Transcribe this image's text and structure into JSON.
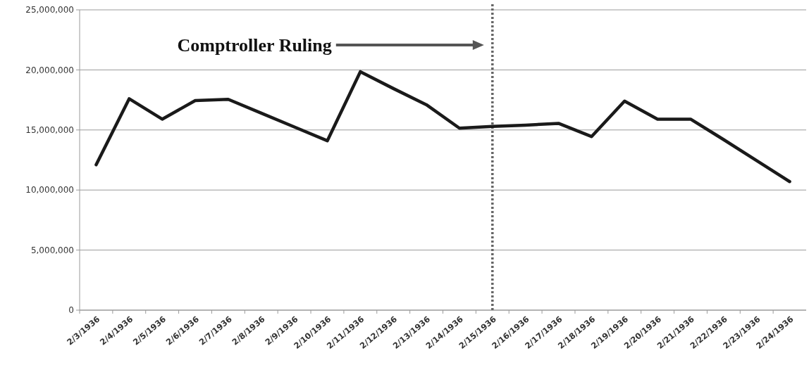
{
  "chart_data": {
    "type": "line",
    "categories": [
      "2/3/1936",
      "2/4/1936",
      "2/5/1936",
      "2/6/1936",
      "2/7/1936",
      "2/8/1936",
      "2/9/1936",
      "2/10/1936",
      "2/11/1936",
      "2/12/1936",
      "2/13/1936",
      "2/14/1936",
      "2/15/1936",
      "2/16/1936",
      "2/17/1936",
      "2/18/1936",
      "2/19/1936",
      "2/20/1936",
      "2/21/1936",
      "2/22/1936",
      "2/23/1936",
      "2/24/1936"
    ],
    "series": [
      {
        "color": "#1a1a1a",
        "values": [
          12100000,
          17600000,
          15900000,
          17450000,
          17550000,
          16400000,
          15250000,
          14100000,
          19850000,
          18450000,
          17100000,
          15150000,
          15300000,
          15400000,
          15550000,
          14450000,
          17400000,
          15900000,
          15900000,
          14200000,
          12450000,
          10700000
        ]
      }
    ],
    "ylim": [
      0,
      25000000
    ],
    "yticks": [
      {
        "value": 0,
        "label": "0"
      },
      {
        "value": 5000000,
        "label": "5,000,000"
      },
      {
        "value": 10000000,
        "label": "10,000,000"
      },
      {
        "value": 15000000,
        "label": "15,000,000"
      },
      {
        "value": 20000000,
        "label": "20,000,000"
      },
      {
        "value": 25000000,
        "label": "25,000,000"
      }
    ],
    "grid": "y",
    "marker": "none",
    "line_style": "solid",
    "ref_lines": [
      {
        "axis": "x",
        "value": "2/15/1936",
        "color": "#666666",
        "line_style": "dotted"
      }
    ],
    "annotations": [
      "Comptroller Ruling"
    ]
  }
}
